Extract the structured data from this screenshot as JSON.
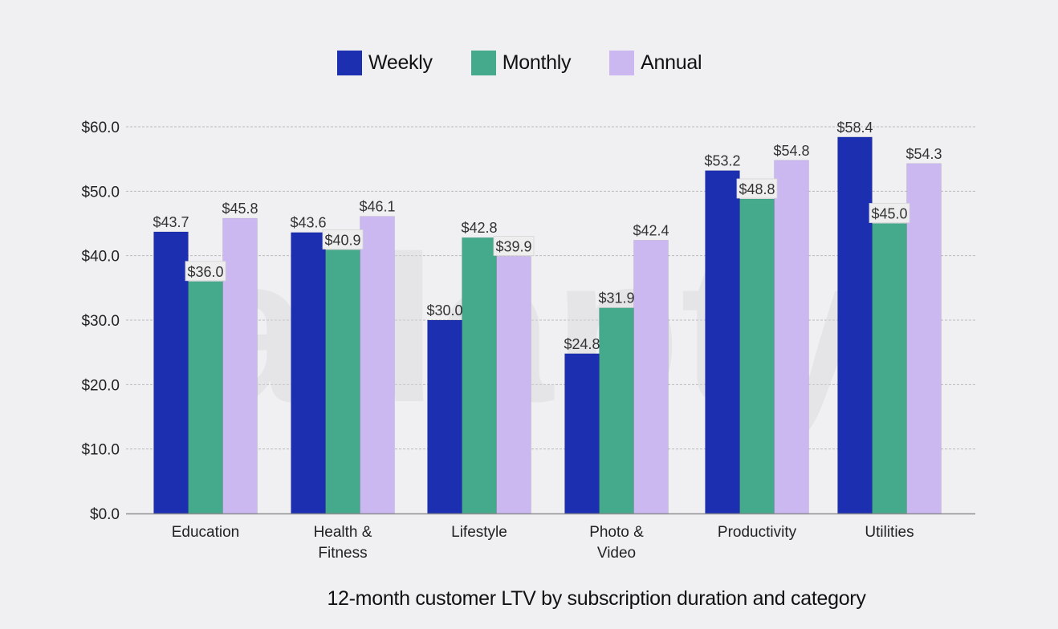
{
  "legend": {
    "items": [
      {
        "label": "Weekly",
        "color": "#1b2fb0"
      },
      {
        "label": "Monthly",
        "color": "#45a98b"
      },
      {
        "label": "Annual",
        "color": "#cbb8f1"
      }
    ]
  },
  "caption": "12-month customer LTV by subscription duration and category",
  "watermark": "adapty",
  "chart_data": {
    "type": "bar",
    "title": "12-month customer LTV by subscription duration and category",
    "xlabel": "",
    "ylabel": "",
    "ylim": [
      0,
      60
    ],
    "yticks": [
      0,
      10,
      20,
      30,
      40,
      50,
      60
    ],
    "ytick_labels": [
      "$0.0",
      "$10.0",
      "$20.0",
      "$30.0",
      "$40.0",
      "$50.0",
      "$60.0"
    ],
    "grid": true,
    "legend_position": "top-center",
    "categories": [
      [
        "Education"
      ],
      [
        "Health &",
        "Fitness"
      ],
      [
        "Lifestyle"
      ],
      [
        "Photo &",
        "Video"
      ],
      [
        "Productivity"
      ],
      [
        "Utilities"
      ]
    ],
    "series": [
      {
        "name": "Weekly",
        "color": "#1b2fb0",
        "values": [
          43.7,
          43.6,
          30.0,
          24.8,
          53.2,
          58.4
        ],
        "labels": [
          "$43.7",
          "$43.6",
          "$30.0",
          "$24.8",
          "$53.2",
          "$58.4"
        ]
      },
      {
        "name": "Monthly",
        "color": "#45a98b",
        "values": [
          36.0,
          40.9,
          42.8,
          31.9,
          48.8,
          45.0
        ],
        "labels": [
          "$36.0",
          "$40.9",
          "$42.8",
          "$31.9",
          "$48.8",
          "$45.0"
        ]
      },
      {
        "name": "Annual",
        "color": "#cbb8f1",
        "values": [
          45.8,
          46.1,
          39.9,
          42.4,
          54.8,
          54.3
        ],
        "labels": [
          "$45.8",
          "$46.1",
          "$39.9",
          "$42.4",
          "$54.8",
          "$54.3"
        ]
      }
    ]
  }
}
